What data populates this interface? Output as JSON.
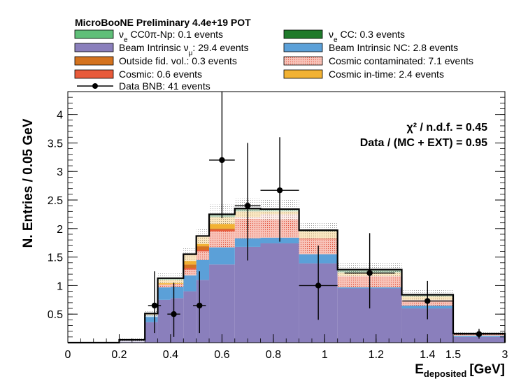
{
  "chart_data": {
    "type": "bar",
    "title": "MicroBooNE Preliminary 4.4e+19 POT",
    "xlabel_main": "E",
    "xlabel_sub": "deposited",
    "xlabel_unit": "[GeV]",
    "ylabel": "N. Entries / 0.05 GeV",
    "ylim": [
      0,
      4.4
    ],
    "x_ticks": [
      "0",
      "0.2",
      "0.4",
      "0.6",
      "0.8",
      "1",
      "1.2",
      "1.4",
      "1.5",
      "3"
    ],
    "y_ticks": [
      "0.5",
      "1",
      "1.5",
      "2",
      "2.5",
      "3",
      "3.5",
      "4"
    ],
    "stat_chi2": "χ² / n.d.f. = 0.45",
    "stat_ratio": "Data / (MC + EXT) = 0.95",
    "bin_labels": [
      "0.0-0.1",
      "0.1-0.2",
      "0.2-0.3",
      "0.3-0.35",
      "0.35-0.4",
      "0.4-0.45",
      "0.45-0.5",
      "0.5-0.55",
      "0.55-0.65",
      "0.65-0.75",
      "0.75-0.9",
      "0.9-1.05",
      "1.05-1.3",
      "1.3-1.5",
      "1.5-3.0"
    ],
    "series": [
      {
        "name": "Beam Intrinsic ν_μ: 29.4 events",
        "color": "#8a7fbc",
        "values": [
          0,
          0,
          0.05,
          0.36,
          0.75,
          0.78,
          0.9,
          1.1,
          1.37,
          1.68,
          1.74,
          1.39,
          0.95,
          0.6,
          0.1
        ]
      },
      {
        "name": "Beam Intrinsic NC: 2.8 events",
        "color": "#5ba0d8",
        "values": [
          0,
          0,
          0,
          0.12,
          0.22,
          0.2,
          0.28,
          0.35,
          0.3,
          0.15,
          0.1,
          0.16,
          0.02,
          0.05,
          0.02
        ]
      },
      {
        "name": "Cosmic contaminated: 7.1 events",
        "color": "#f7b0a8",
        "values": [
          0,
          0,
          0,
          0,
          0.05,
          0.05,
          0.1,
          0.15,
          0.28,
          0.37,
          0.41,
          0.26,
          0.2,
          0.1,
          0.03
        ]
      },
      {
        "name": "Cosmic: 0.6 events",
        "color": "#e85a3a",
        "values": [
          0,
          0,
          0,
          0,
          0,
          0,
          0.03,
          0.03,
          0.03,
          0,
          0,
          0.02,
          0,
          0,
          0
        ]
      },
      {
        "name": "Outside fid. vol.: 0.3 events",
        "color": "#d4731f",
        "values": [
          0,
          0,
          0,
          0,
          0,
          0,
          0.06,
          0.06,
          0.02,
          0,
          0,
          0,
          0,
          0,
          0
        ]
      },
      {
        "name": "Cosmic in-time: 2.4 events",
        "color": "#f2b233",
        "values": [
          0,
          0,
          0,
          0.03,
          0.08,
          0.07,
          0.18,
          0.18,
          0.2,
          0.1,
          0.05,
          0.12,
          0.06,
          0.06,
          0.01
        ]
      },
      {
        "name": "ν_e CC0π-Np: 0.1 events",
        "color": "#5fbf78",
        "values": [
          0,
          0,
          0,
          0,
          0,
          0,
          0,
          0,
          0,
          0,
          0.02,
          0,
          0,
          0,
          0
        ]
      },
      {
        "name": "ν_e CC: 0.3 events",
        "color": "#1f7a2a",
        "values": [
          0,
          0,
          0,
          0,
          0.03,
          0.03,
          0,
          0,
          0.05,
          0.05,
          0.02,
          0.02,
          0.05,
          0.03,
          0
        ]
      }
    ],
    "mc_uncertainty": [
      0,
      0,
      0.04,
      0.06,
      0.09,
      0.09,
      0.12,
      0.14,
      0.17,
      0.18,
      0.18,
      0.15,
      0.12,
      0.1,
      0.02
    ],
    "data_bnb": {
      "name": "Data BNB: 41 events",
      "points": [
        {
          "x": 0.3375,
          "y": 0.65,
          "err_lo": 0.48,
          "err_hi": 0.6
        },
        {
          "x": 0.4125,
          "y": 0.5,
          "err_lo": 0.4,
          "err_hi": 0.55
        },
        {
          "x": 0.5125,
          "y": 0.65,
          "err_lo": 0.48,
          "err_hi": 0.6
        },
        {
          "x": 0.6,
          "y": 3.2,
          "err_lo": 1.02,
          "err_hi": 1.2
        },
        {
          "x": 0.7,
          "y": 2.4,
          "err_lo": 0.96,
          "err_hi": 1.1
        },
        {
          "x": 0.825,
          "y": 2.67,
          "err_lo": 0.9,
          "err_hi": 0.93
        },
        {
          "x": 0.975,
          "y": 1.0,
          "err_lo": 0.6,
          "err_hi": 0.7
        },
        {
          "x": 1.175,
          "y": 1.22,
          "err_lo": 0.62,
          "err_hi": 0.7
        },
        {
          "x": 1.4,
          "y": 0.73,
          "err_lo": 0.32,
          "err_hi": 0.35
        },
        {
          "x": 2.25,
          "y": 0.15,
          "err_lo": 0.08,
          "err_hi": 0.09
        }
      ]
    },
    "legend": [
      "ν_e CC0π-Np: 0.1 events",
      "ν_e CC: 0.3 events",
      "Beam Intrinsic ν_μ: 29.4 events",
      "Beam Intrinsic NC: 2.8 events",
      "Outside fid. vol.: 0.3 events",
      "Cosmic contaminated: 7.1 events",
      "Cosmic: 0.6 events",
      "Cosmic in-time: 2.4 events",
      "Data BNB: 41 events"
    ]
  }
}
